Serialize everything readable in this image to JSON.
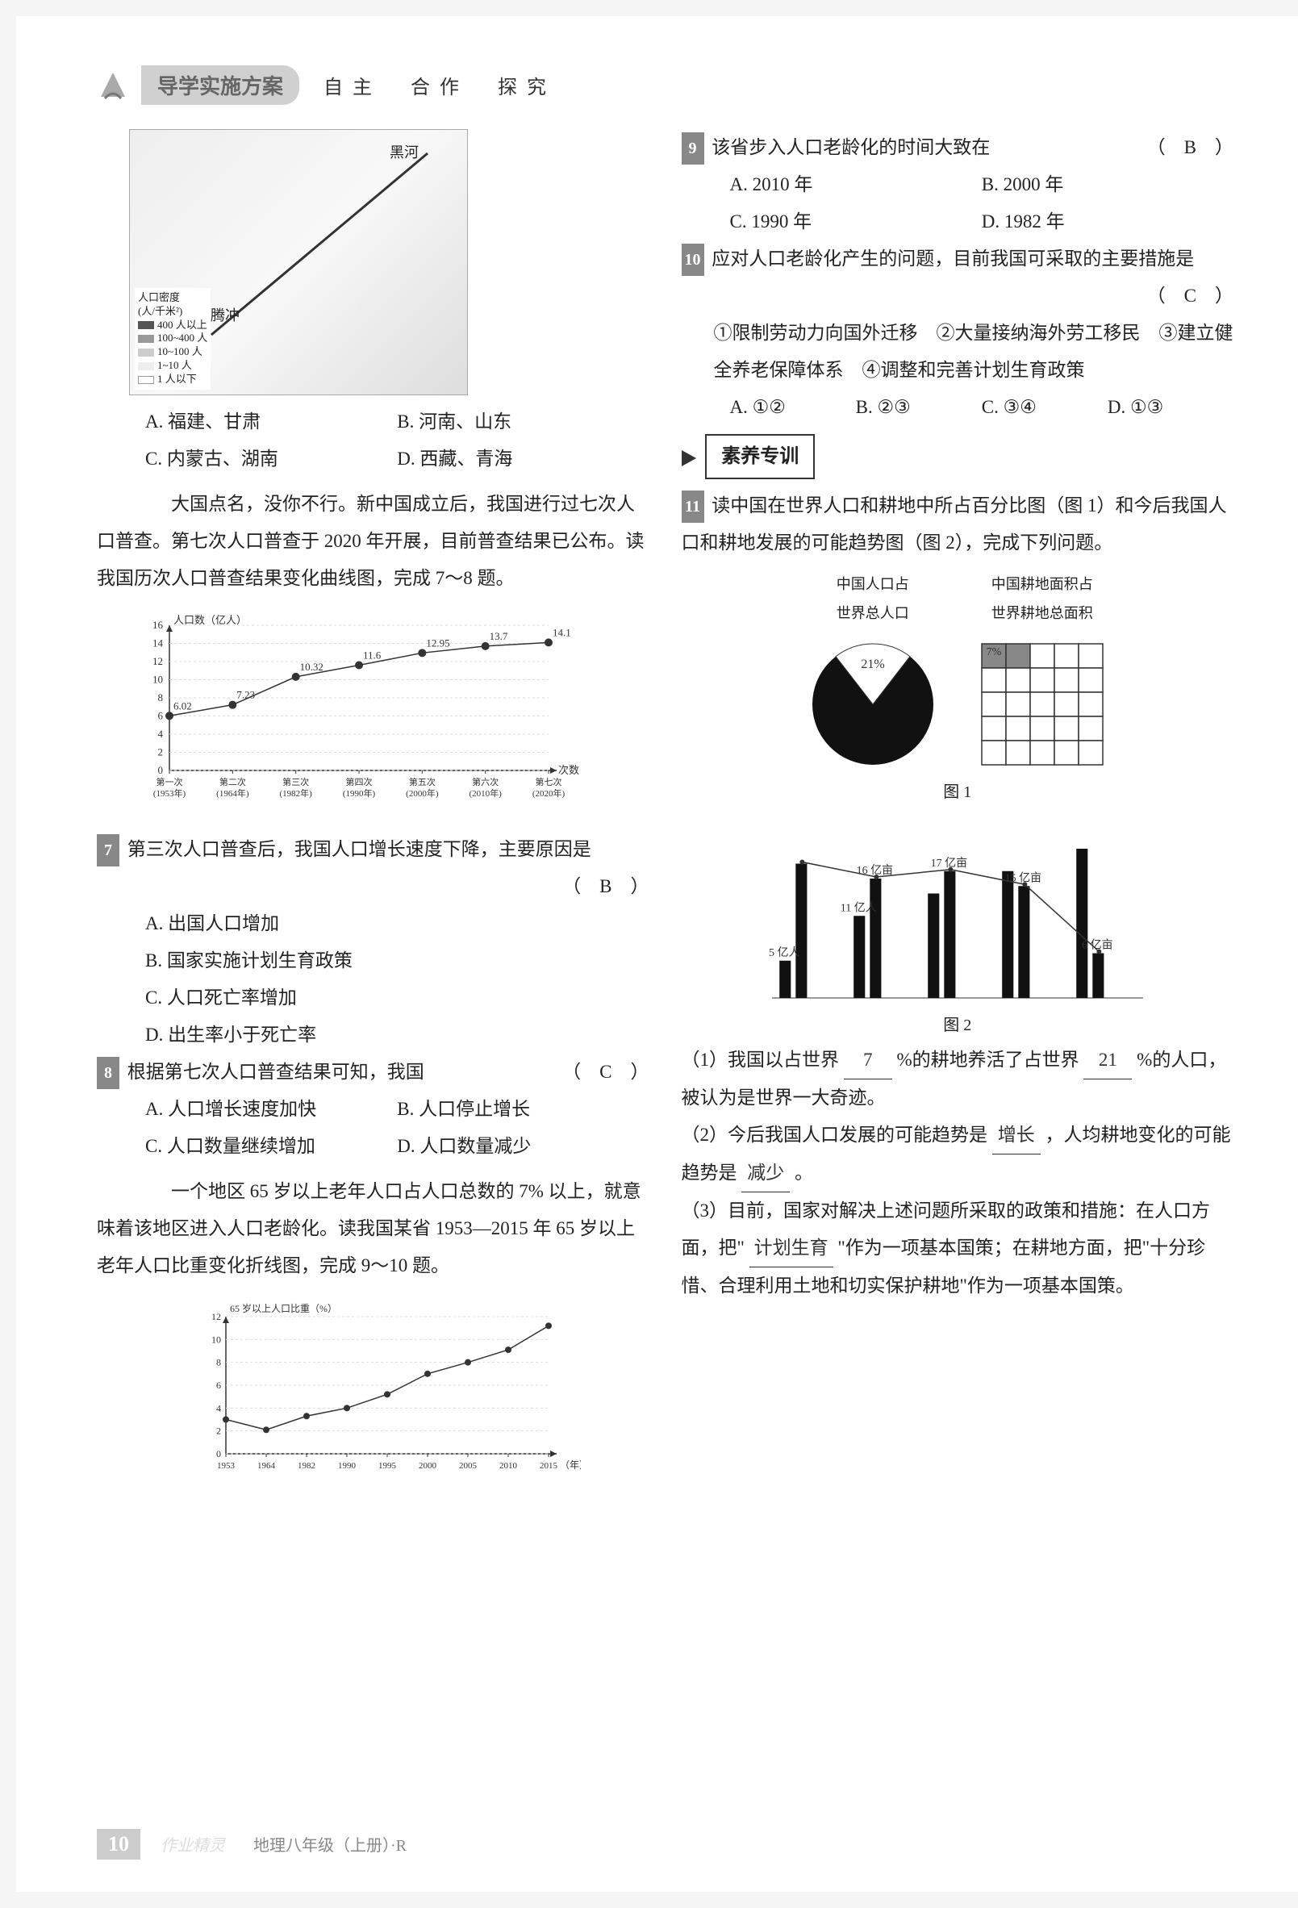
{
  "header": {
    "title": "导学实施方案",
    "subtitle": "自主　合作　探究"
  },
  "map": {
    "label_heihe": "黑河",
    "label_tengchong": "腾冲",
    "legend_title": "人口密度\n(人/千米²)",
    "legend_items": [
      {
        "label": "400 人以上",
        "color": "#555555"
      },
      {
        "label": "100~400 人",
        "color": "#999999"
      },
      {
        "label": "10~100 人",
        "color": "#cccccc"
      },
      {
        "label": "1~10 人",
        "color": "#eeeeee"
      },
      {
        "label": "1 人以下",
        "color": "#ffffff"
      }
    ]
  },
  "q6_like_options": {
    "A": "福建、甘肃",
    "B": "河南、山东",
    "C": "内蒙古、湖南",
    "D": "西藏、青海"
  },
  "passage1": "　　大国点名，没你不行。新中国成立后，我国进行过七次人口普查。第七次人口普查于 2020 年开展，目前普查结果已公布。读我国历次人口普查结果变化曲线图，完成 7～8 题。",
  "census_chart": {
    "type": "line",
    "y_label": "人口数（亿人）",
    "x_label": "次数",
    "y_lim": [
      0,
      16
    ],
    "y_tick_step": 2,
    "x_categories": [
      "第一次\n(1953年)",
      "第二次\n(1964年)",
      "第三次\n(1982年)",
      "第四次\n(1990年)",
      "第五次\n(2000年)",
      "第六次\n(2010年)",
      "第七次\n(2020年)"
    ],
    "values": [
      6.02,
      7.23,
      10.32,
      11.6,
      12.95,
      13.7,
      14.1
    ],
    "line_color": "#333333",
    "marker": "circle",
    "marker_size": 5,
    "grid_color": "#dddddd",
    "background_color": "#ffffff",
    "font_size": 12
  },
  "q7": {
    "num": "7",
    "stem": "第三次人口普查后，我国人口增长速度下降，主要原因是",
    "answer": "B",
    "opts": {
      "A": "出国人口增加",
      "B": "国家实施计划生育政策",
      "C": "人口死亡率增加",
      "D": "出生率小于死亡率"
    }
  },
  "q8": {
    "num": "8",
    "stem": "根据第七次人口普查结果可知，我国",
    "answer": "C",
    "opts": {
      "A": "人口增长速度加快",
      "B": "人口停止增长",
      "C": "人口数量继续增加",
      "D": "人口数量减少"
    }
  },
  "passage2": "　　一个地区 65 岁以上老年人口占人口总数的 7% 以上，就意味着该地区进入人口老龄化。读我国某省 1953—2015 年 65 岁以上老年人口比重变化折线图，完成 9～10 题。",
  "aging_chart": {
    "type": "line",
    "y_label": "65 岁以上人口比重（%）",
    "x_label": "（年）",
    "y_lim": [
      0,
      12
    ],
    "y_tick_step": 2,
    "x_categories": [
      "1953",
      "1964",
      "1982",
      "1990",
      "1995",
      "2000",
      "2005",
      "2010",
      "2015"
    ],
    "values": [
      3.0,
      2.1,
      3.3,
      4.0,
      5.2,
      7.0,
      8.0,
      9.1,
      11.2
    ],
    "line_color": "#333333",
    "marker": "circle",
    "marker_size": 5,
    "grid_color": "#dddddd",
    "background_color": "#ffffff",
    "font_size": 12
  },
  "q9": {
    "num": "9",
    "stem": "该省步入人口老龄化的时间大致在",
    "answer": "B",
    "opts": {
      "A": "2010 年",
      "B": "2000 年",
      "C": "1990 年",
      "D": "1982 年"
    }
  },
  "q10": {
    "num": "10",
    "stem": "应对人口老龄化产生的问题，目前我国可采取的主要措施是",
    "answer": "C",
    "combos": "①限制劳动力向国外迁移　②大量接纳海外劳工移民　③建立健全养老保障体系　④调整和完善计划生育政策",
    "opts": {
      "A": "①②",
      "B": "②③",
      "C": "③④",
      "D": "①③"
    }
  },
  "section_title": "素养专训",
  "q11": {
    "num": "11",
    "stem": "读中国在世界人口和耕地中所占百分比图（图 1）和今后我国人口和耕地发展的可能趋势图（图 2），完成下列问题。",
    "fig1": {
      "type": "pie_and_waffle",
      "pie_label": "中国人口占\n世界总人口",
      "pie_value": 21,
      "pie_value_label": "21%",
      "pie_colors": {
        "china": "#ffffff",
        "rest": "#111111"
      },
      "waffle_label": "中国耕地面积占\n世界耕地总面积",
      "waffle_value": 7,
      "waffle_value_label": "7%",
      "waffle_rows": 5,
      "waffle_cols": 5,
      "waffle_fill_color": "#888888",
      "waffle_empty_color": "#ffffff",
      "waffle_border": "#333333",
      "caption": "图 1"
    },
    "fig2": {
      "type": "grouped_bar_with_values",
      "groups": [
        {
          "pop_label": "5 亿人",
          "pop": 5,
          "land_label": "",
          "land": 18
        },
        {
          "pop_label": "11 亿人",
          "pop": 11,
          "land_label": "16 亿亩",
          "land": 16
        },
        {
          "pop_label": "",
          "pop": 14,
          "land_label": "17 亿亩",
          "land": 17
        },
        {
          "pop_label": "",
          "pop": 17,
          "land_label": "15 亿亩",
          "land": 15
        },
        {
          "pop_label": "",
          "pop": 20,
          "land_label": "6 亿亩",
          "land": 6
        }
      ],
      "pop_color": "#111111",
      "land_color": "#111111",
      "bar_width": 0.35,
      "gap": 0.1,
      "caption": "图 2"
    },
    "sub1_before": "（1）我国以占世界",
    "sub1_blank1": "7",
    "sub1_mid": "%的耕地养活了占世界",
    "sub1_blank2": "21",
    "sub1_after": "%的人口，被认为是世界一大奇迹。",
    "sub2_before": "（2）今后我国人口发展的可能趋势是",
    "sub2_blank1": "增长",
    "sub2_mid": "，人均耕地变化的可能趋势是",
    "sub2_blank2": "减少",
    "sub2_after": "。",
    "sub3_before": "（3）目前，国家对解决上述问题所采取的政策和措施：在人口方面，把\"",
    "sub3_blank": "计划生育",
    "sub3_after": "\"作为一项基本国策；在耕地方面，把\"十分珍惜、合理利用土地和切实保护耕地\"作为一项基本国策。"
  },
  "footer": {
    "page": "10",
    "book": "地理八年级（上册）·R",
    "watermark": "作业精灵"
  }
}
